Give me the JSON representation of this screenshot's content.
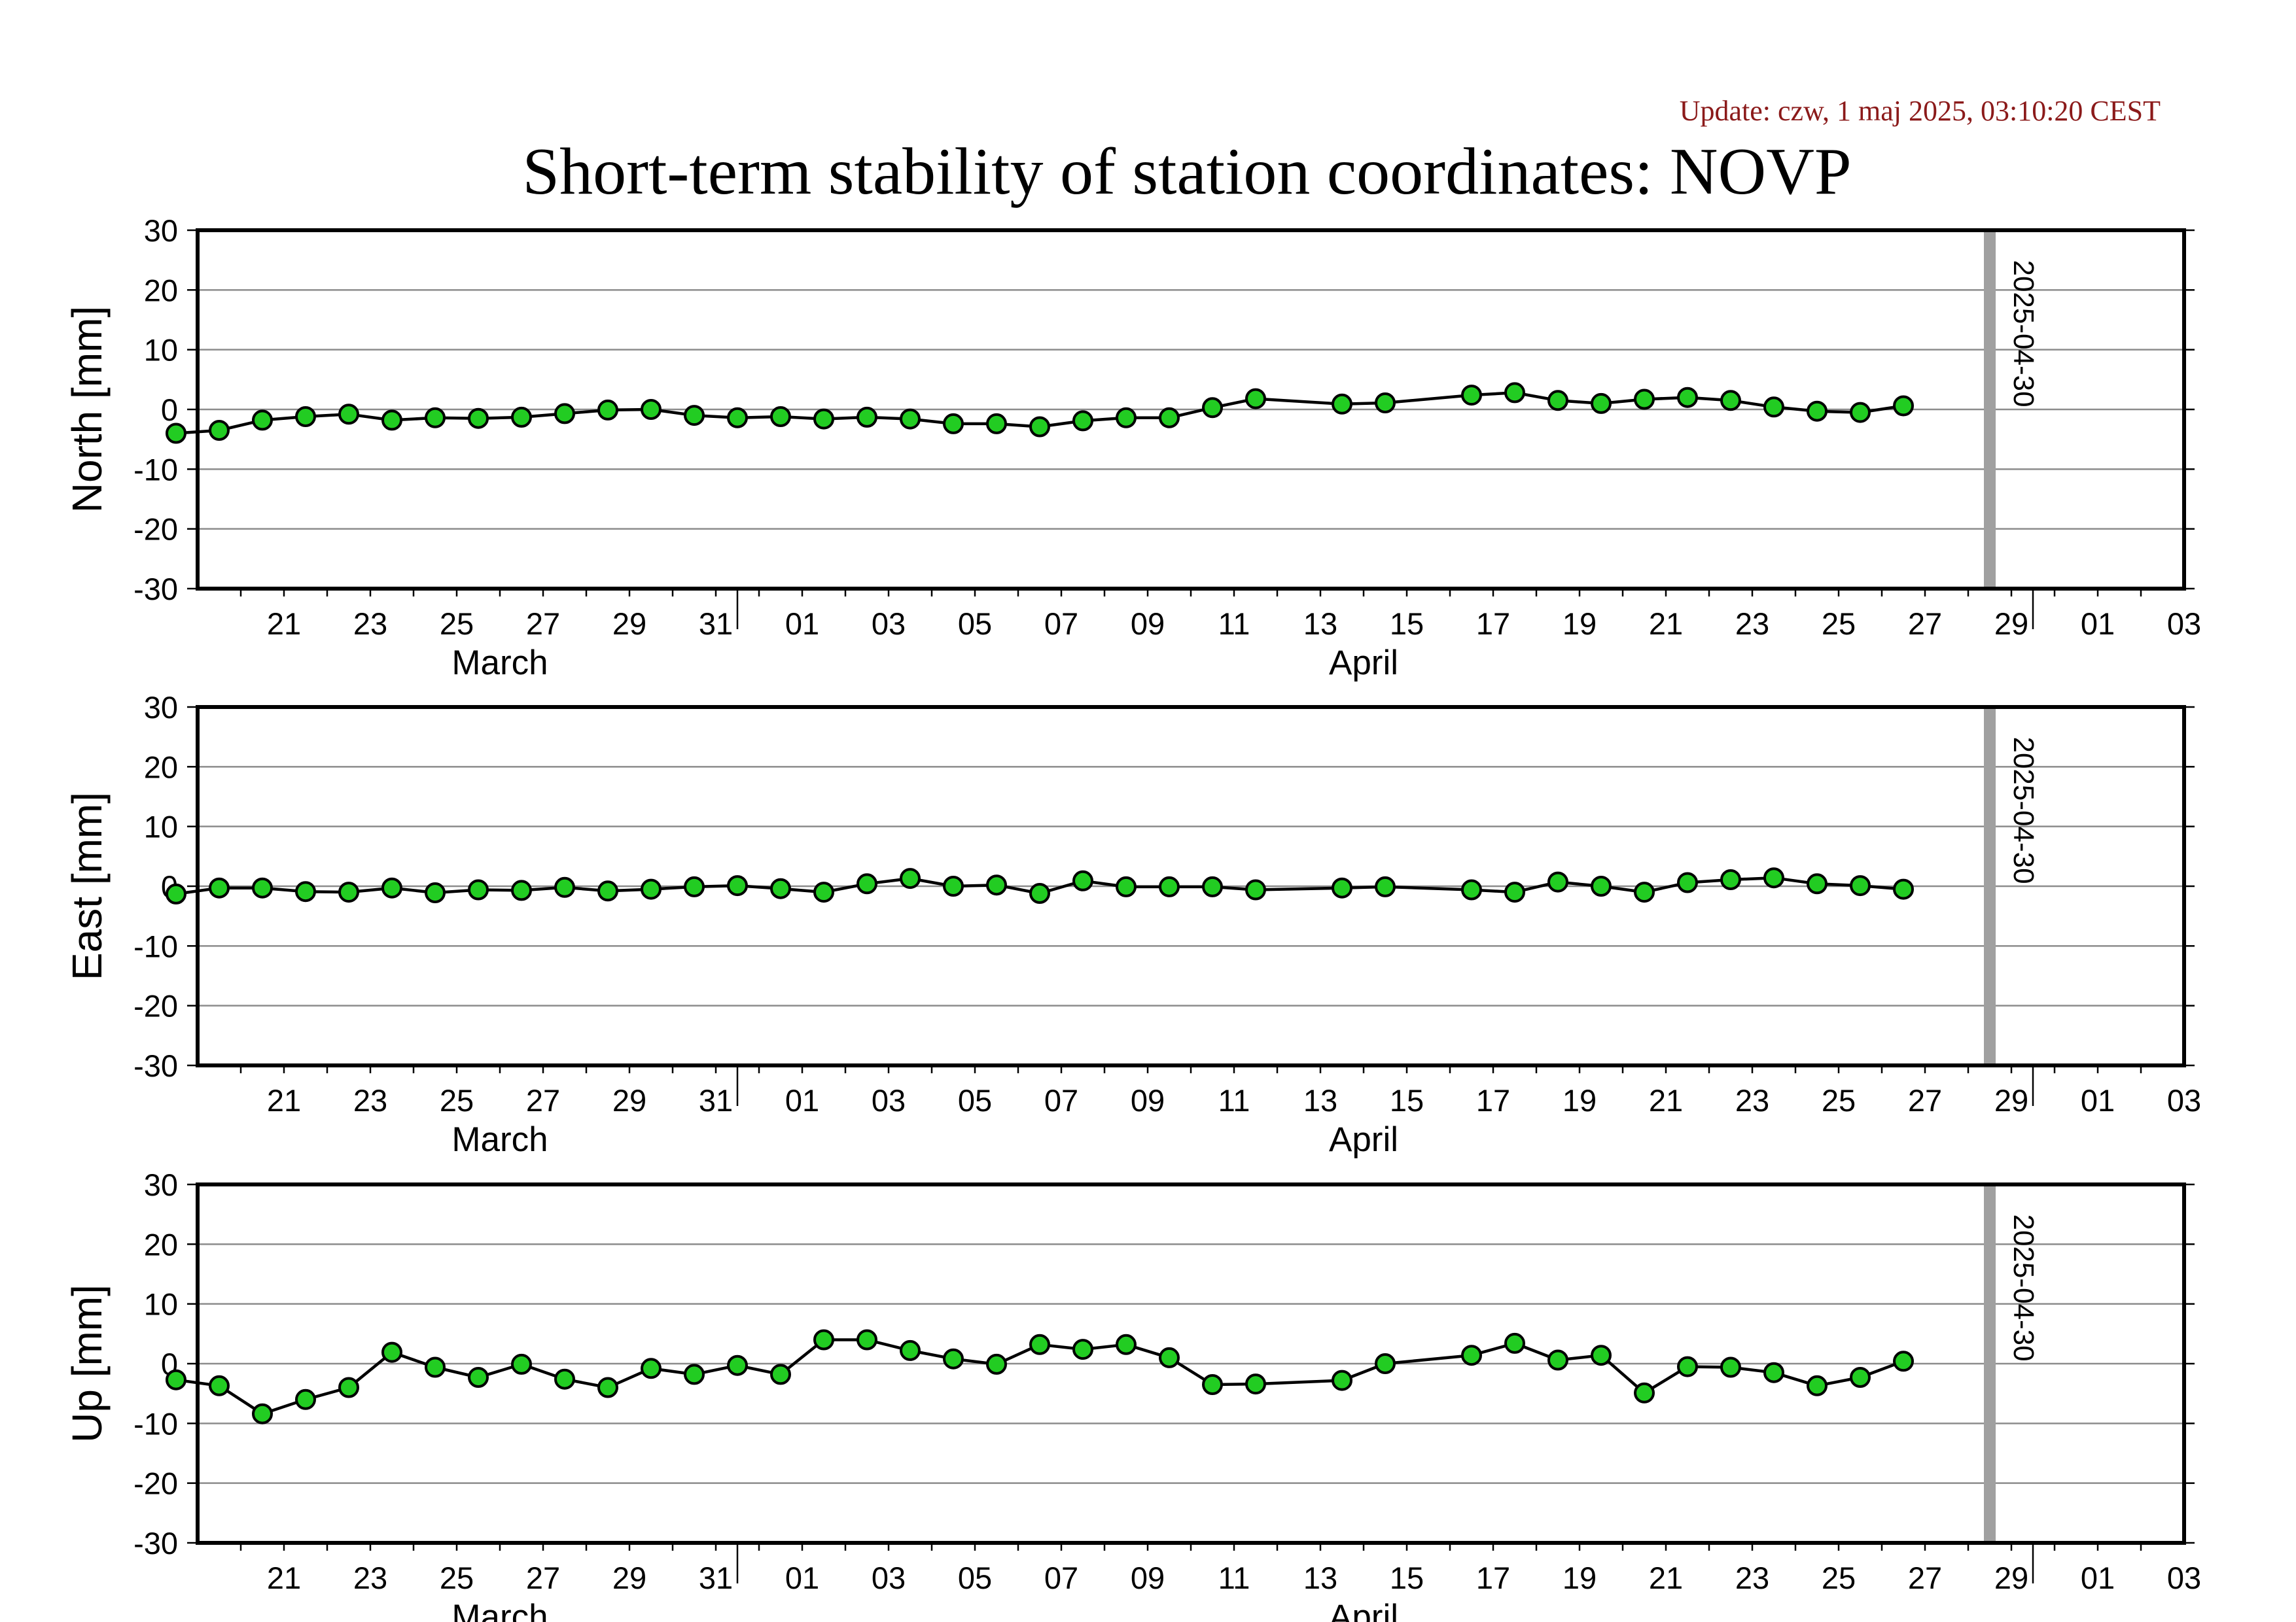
{
  "update_text": "Update: czw, 1 maj 2025, 03:10:20 CEST",
  "title": "Short-term stability of station coordinates: NOVP",
  "chart_data": [
    {
      "type": "line",
      "ylabel": "North [mm]",
      "ylim": [
        -30,
        30
      ],
      "yticks": [
        30,
        20,
        10,
        0,
        -10,
        -20,
        -30
      ],
      "grid": true,
      "x_range": [
        "2025-03-19",
        "2025-05-04"
      ],
      "x_tick_labels": [
        "21",
        "23",
        "25",
        "27",
        "29",
        "31",
        "01",
        "03",
        "05",
        "07",
        "09",
        "11",
        "13",
        "15",
        "17",
        "19",
        "21",
        "23",
        "25",
        "27",
        "29",
        "01",
        "03"
      ],
      "month_labels": [
        "March",
        "April"
      ],
      "marker_label": "2025-04-30",
      "marker_color": "#a0a0a0",
      "point_color": "#22cc22",
      "series": [
        {
          "x": [
            "2025-03-19",
            "2025-03-20",
            "2025-03-21",
            "2025-03-22",
            "2025-03-23",
            "2025-03-24",
            "2025-03-25",
            "2025-03-26",
            "2025-03-27",
            "2025-03-28",
            "2025-03-29",
            "2025-03-30",
            "2025-03-31",
            "2025-04-01",
            "2025-04-02",
            "2025-04-03",
            "2025-04-04",
            "2025-04-05",
            "2025-04-06",
            "2025-04-07",
            "2025-04-08",
            "2025-04-09",
            "2025-04-10",
            "2025-04-11",
            "2025-04-12",
            "2025-04-13",
            "2025-04-15",
            "2025-04-16",
            "2025-04-18",
            "2025-04-19",
            "2025-04-20",
            "2025-04-21",
            "2025-04-22",
            "2025-04-23",
            "2025-04-24",
            "2025-04-25",
            "2025-04-26",
            "2025-04-27",
            "2025-04-28"
          ],
          "values": [
            -4.0,
            -3.5,
            -1.8,
            -1.2,
            -0.8,
            -1.8,
            -1.4,
            -1.5,
            -1.3,
            -0.7,
            -0.1,
            0.0,
            -1.0,
            -1.4,
            -1.2,
            -1.6,
            -1.3,
            -1.6,
            -2.4,
            -2.4,
            -2.9,
            -1.9,
            -1.4,
            -1.4,
            0.3,
            1.8,
            0.9,
            1.1,
            2.4,
            2.8,
            1.5,
            1.0,
            1.7,
            2.0,
            1.5,
            0.4,
            -0.3,
            -0.5,
            0.6
          ]
        }
      ]
    },
    {
      "type": "line",
      "ylabel": "East [mm]",
      "ylim": [
        -30,
        30
      ],
      "yticks": [
        30,
        20,
        10,
        0,
        -10,
        -20,
        -30
      ],
      "grid": true,
      "x_range": [
        "2025-03-19",
        "2025-05-04"
      ],
      "x_tick_labels": [
        "21",
        "23",
        "25",
        "27",
        "29",
        "31",
        "01",
        "03",
        "05",
        "07",
        "09",
        "11",
        "13",
        "15",
        "17",
        "19",
        "21",
        "23",
        "25",
        "27",
        "29",
        "01",
        "03"
      ],
      "month_labels": [
        "March",
        "April"
      ],
      "marker_label": "2025-04-30",
      "marker_color": "#a0a0a0",
      "point_color": "#22cc22",
      "series": [
        {
          "x": [
            "2025-03-19",
            "2025-03-20",
            "2025-03-21",
            "2025-03-22",
            "2025-03-23",
            "2025-03-24",
            "2025-03-25",
            "2025-03-26",
            "2025-03-27",
            "2025-03-28",
            "2025-03-29",
            "2025-03-30",
            "2025-03-31",
            "2025-04-01",
            "2025-04-02",
            "2025-04-03",
            "2025-04-04",
            "2025-04-05",
            "2025-04-06",
            "2025-04-07",
            "2025-04-08",
            "2025-04-09",
            "2025-04-10",
            "2025-04-11",
            "2025-04-12",
            "2025-04-13",
            "2025-04-15",
            "2025-04-16",
            "2025-04-18",
            "2025-04-19",
            "2025-04-20",
            "2025-04-21",
            "2025-04-22",
            "2025-04-23",
            "2025-04-24",
            "2025-04-25",
            "2025-04-26",
            "2025-04-27",
            "2025-04-28"
          ],
          "values": [
            -1.3,
            -0.3,
            -0.3,
            -0.9,
            -1.0,
            -0.3,
            -1.1,
            -0.6,
            -0.7,
            -0.2,
            -0.8,
            -0.5,
            -0.1,
            0.1,
            -0.4,
            -1.0,
            0.4,
            1.3,
            0.0,
            0.2,
            -1.2,
            0.9,
            -0.1,
            -0.1,
            -0.1,
            -0.6,
            -0.3,
            -0.1,
            -0.6,
            -1.0,
            0.7,
            0.0,
            -1.0,
            0.6,
            1.1,
            1.4,
            0.4,
            0.1,
            -0.5
          ]
        }
      ]
    },
    {
      "type": "line",
      "ylabel": "Up [mm]",
      "ylim": [
        -30,
        30
      ],
      "yticks": [
        30,
        20,
        10,
        0,
        -10,
        -20,
        -30
      ],
      "grid": true,
      "x_range": [
        "2025-03-19",
        "2025-05-04"
      ],
      "x_tick_labels": [
        "21",
        "23",
        "25",
        "27",
        "29",
        "31",
        "01",
        "03",
        "05",
        "07",
        "09",
        "11",
        "13",
        "15",
        "17",
        "19",
        "21",
        "23",
        "25",
        "27",
        "29",
        "01",
        "03"
      ],
      "month_labels": [
        "March",
        "April"
      ],
      "marker_label": "2025-04-30",
      "marker_color": "#a0a0a0",
      "point_color": "#22cc22",
      "series": [
        {
          "x": [
            "2025-03-19",
            "2025-03-20",
            "2025-03-21",
            "2025-03-22",
            "2025-03-23",
            "2025-03-24",
            "2025-03-25",
            "2025-03-26",
            "2025-03-27",
            "2025-03-28",
            "2025-03-29",
            "2025-03-30",
            "2025-03-31",
            "2025-04-01",
            "2025-04-02",
            "2025-04-03",
            "2025-04-04",
            "2025-04-05",
            "2025-04-06",
            "2025-04-07",
            "2025-04-08",
            "2025-04-09",
            "2025-04-10",
            "2025-04-11",
            "2025-04-12",
            "2025-04-13",
            "2025-04-15",
            "2025-04-16",
            "2025-04-18",
            "2025-04-19",
            "2025-04-20",
            "2025-04-21",
            "2025-04-22",
            "2025-04-23",
            "2025-04-24",
            "2025-04-25",
            "2025-04-26",
            "2025-04-27",
            "2025-04-28"
          ],
          "values": [
            -2.7,
            -3.7,
            -8.4,
            -6.0,
            -4.0,
            1.9,
            -0.6,
            -2.3,
            -0.1,
            -2.6,
            -4.0,
            -0.8,
            -1.8,
            -0.3,
            -1.8,
            4.0,
            4.0,
            2.2,
            0.8,
            -0.1,
            3.2,
            2.4,
            3.2,
            1.0,
            -3.5,
            -3.4,
            -2.8,
            0.0,
            1.4,
            3.4,
            0.6,
            1.4,
            -4.9,
            -0.5,
            -0.6,
            -1.5,
            -3.7,
            -2.3,
            0.4
          ]
        }
      ]
    }
  ]
}
